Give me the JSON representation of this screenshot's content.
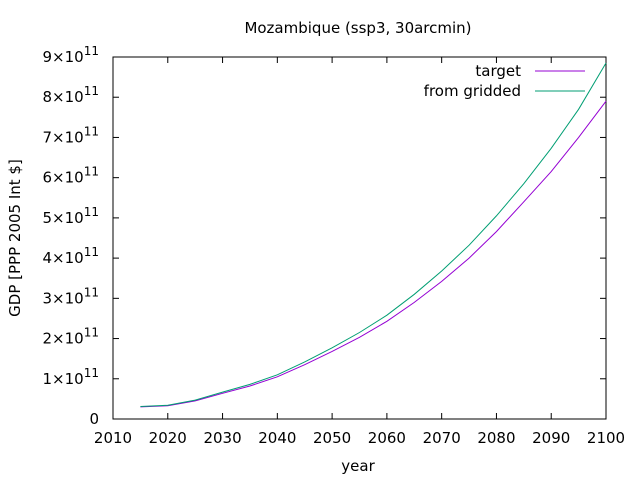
{
  "chart_data": {
    "type": "line",
    "title": "Mozambique (ssp3, 30arcmin)",
    "xlabel": "year",
    "ylabel": "GDP [PPP 2005 Int $]",
    "xlim": [
      2010,
      2100
    ],
    "ylim": [
      0,
      900000000000
    ],
    "x_ticks": [
      "2010",
      "2020",
      "2030",
      "2040",
      "2050",
      "2060",
      "2070",
      "2080",
      "2090",
      "2100"
    ],
    "y_ticks": [
      {
        "value": 0,
        "mantissa": "0",
        "exp": ""
      },
      {
        "value": 100000000000,
        "mantissa": "1×10",
        "exp": "11"
      },
      {
        "value": 200000000000,
        "mantissa": "2×10",
        "exp": "11"
      },
      {
        "value": 300000000000,
        "mantissa": "3×10",
        "exp": "11"
      },
      {
        "value": 400000000000,
        "mantissa": "4×10",
        "exp": "11"
      },
      {
        "value": 500000000000,
        "mantissa": "5×10",
        "exp": "11"
      },
      {
        "value": 600000000000,
        "mantissa": "6×10",
        "exp": "11"
      },
      {
        "value": 700000000000,
        "mantissa": "7×10",
        "exp": "11"
      },
      {
        "value": 800000000000,
        "mantissa": "8×10",
        "exp": "11"
      },
      {
        "value": 900000000000,
        "mantissa": "9×10",
        "exp": "11"
      }
    ],
    "legend_position": "top-right",
    "grid": false,
    "series": [
      {
        "name": "target",
        "color": "#9400d3",
        "x": [
          2015,
          2020,
          2025,
          2030,
          2035,
          2040,
          2045,
          2050,
          2055,
          2060,
          2065,
          2070,
          2075,
          2080,
          2085,
          2090,
          2095,
          2100
        ],
        "y": [
          30000000000,
          33000000000,
          45000000000,
          64000000000,
          82000000000,
          105000000000,
          135000000000,
          168000000000,
          203000000000,
          243000000000,
          290000000000,
          342000000000,
          400000000000,
          466000000000,
          540000000000,
          615000000000,
          700000000000,
          790000000000
        ]
      },
      {
        "name": "from gridded",
        "color": "#009e73",
        "x": [
          2015,
          2020,
          2025,
          2030,
          2035,
          2040,
          2045,
          2050,
          2055,
          2060,
          2065,
          2070,
          2075,
          2080,
          2085,
          2090,
          2095,
          2100
        ],
        "y": [
          31000000000,
          34000000000,
          47000000000,
          67000000000,
          86000000000,
          110000000000,
          142000000000,
          177000000000,
          215000000000,
          258000000000,
          310000000000,
          368000000000,
          432000000000,
          505000000000,
          585000000000,
          673000000000,
          770000000000,
          885000000000
        ]
      }
    ]
  }
}
